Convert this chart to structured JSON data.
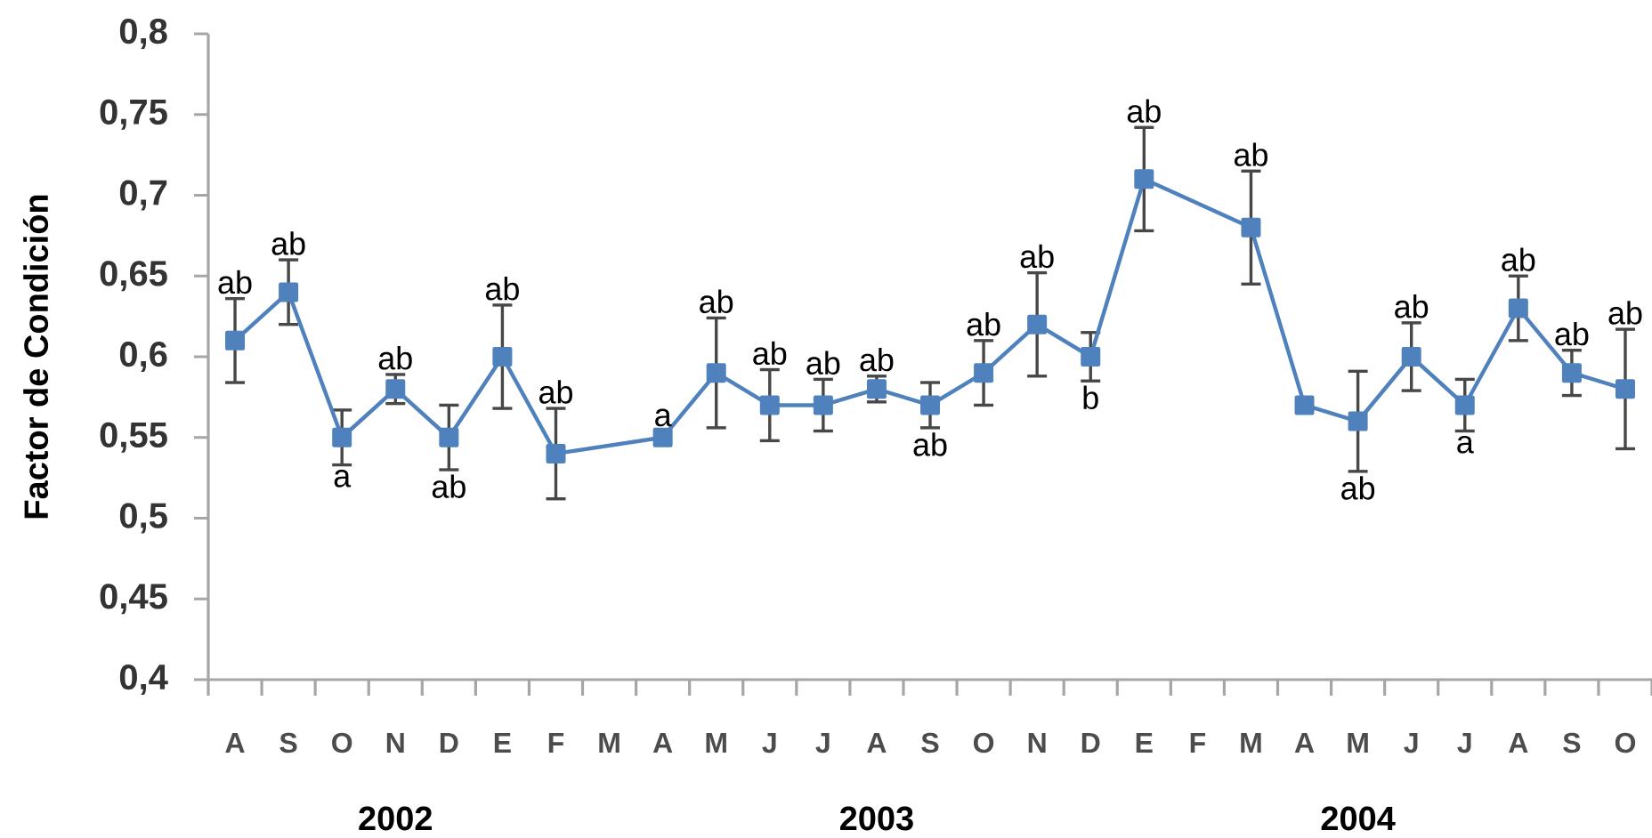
{
  "chart_data": {
    "type": "line",
    "ylabel": "Factor de Condición",
    "categories": [
      "A",
      "S",
      "O",
      "N",
      "D",
      "E",
      "F",
      "M",
      "A",
      "M",
      "J",
      "J",
      "A",
      "S",
      "O",
      "N",
      "D",
      "E",
      "F",
      "M",
      "A",
      "M",
      "J",
      "J",
      "A",
      "S",
      "O"
    ],
    "series": [
      {
        "color": "#4f81bd",
        "values": [
          0.61,
          0.64,
          0.55,
          0.58,
          0.55,
          0.6,
          0.54,
          null,
          0.55,
          0.59,
          0.57,
          0.57,
          0.58,
          0.57,
          0.59,
          0.62,
          0.6,
          0.71,
          null,
          0.68,
          0.57,
          0.56,
          0.6,
          0.57,
          0.63,
          0.59,
          0.58
        ],
        "errors": [
          0.026,
          0.02,
          0.017,
          0.009,
          0.02,
          0.032,
          0.028,
          null,
          null,
          0.034,
          0.022,
          0.016,
          0.008,
          0.014,
          0.02,
          0.032,
          0.015,
          0.032,
          null,
          0.035,
          null,
          0.031,
          0.021,
          0.016,
          0.02,
          0.014,
          0.037
        ],
        "value_labels": [
          "ab",
          "ab",
          "a",
          "ab",
          "ab",
          "ab",
          "ab",
          null,
          "a",
          "ab",
          "ab",
          "ab",
          "ab",
          "ab",
          "ab",
          "ab",
          "b",
          "ab",
          null,
          "ab",
          null,
          "ab",
          "ab",
          "a",
          "ab",
          "ab",
          "ab"
        ]
      }
    ],
    "ylim": [
      0.4,
      0.8
    ],
    "yticks": [
      {
        "value": 0.4,
        "label": "0,4"
      },
      {
        "value": 0.45,
        "label": "0,45"
      },
      {
        "value": 0.5,
        "label": "0,5"
      },
      {
        "value": 0.55,
        "label": "0,55"
      },
      {
        "value": 0.6,
        "label": "0,6"
      },
      {
        "value": 0.65,
        "label": "0,65"
      },
      {
        "value": 0.7,
        "label": "0,7"
      },
      {
        "value": 0.75,
        "label": "0,75"
      },
      {
        "value": 0.8,
        "label": "0,8"
      }
    ],
    "marker": "square",
    "annotations": [
      "2002",
      "2003",
      "2004"
    ]
  }
}
